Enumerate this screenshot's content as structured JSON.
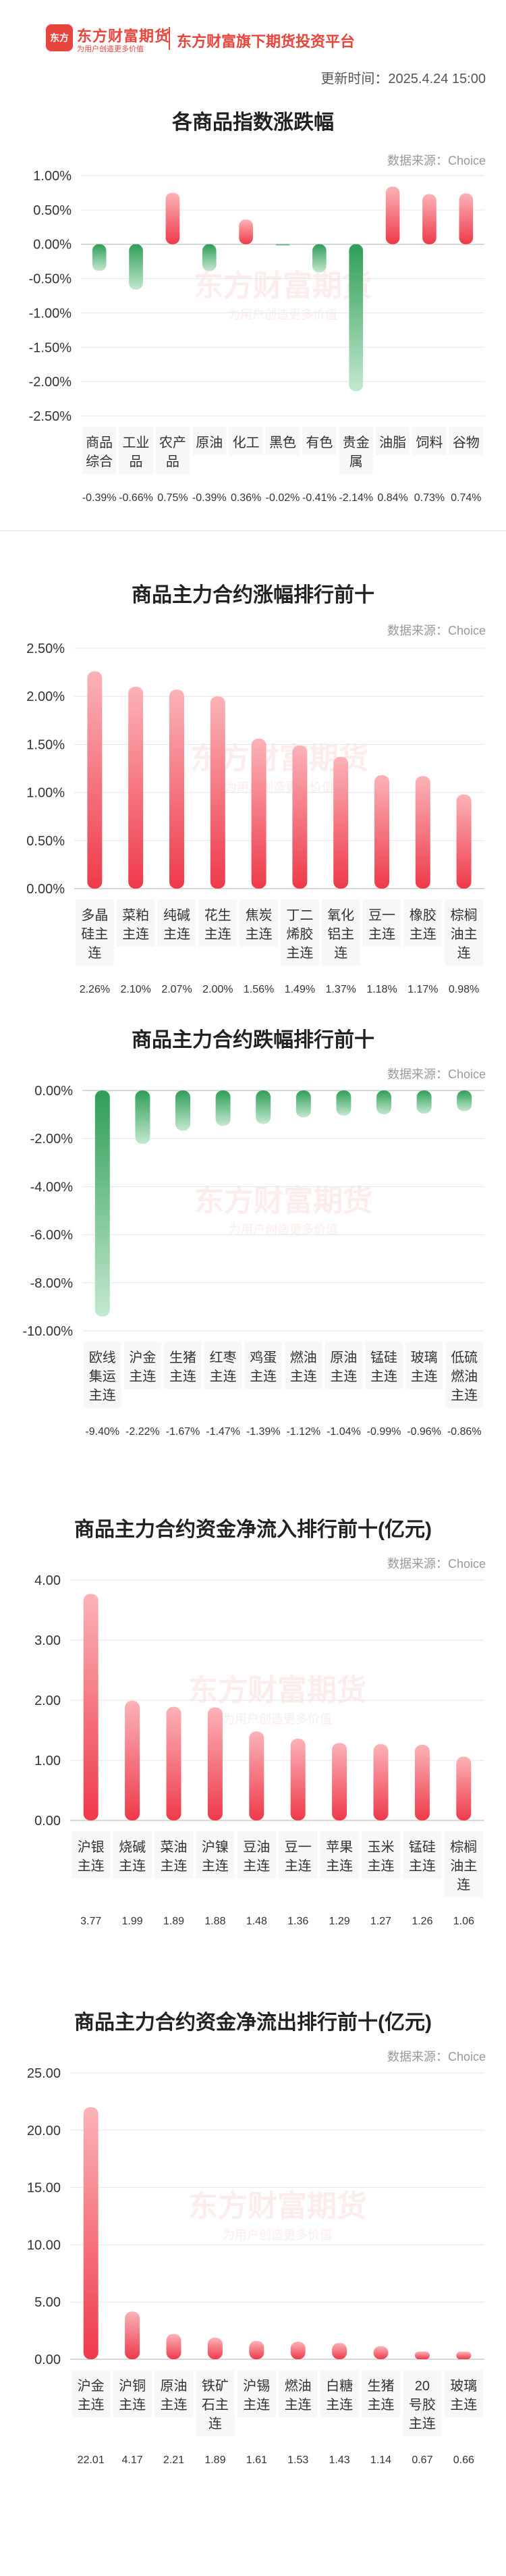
{
  "header": {
    "logo_text": "东方",
    "brand_name": "东方财富期货",
    "slogan": "为用户创造更多价值",
    "platform": "东方财富旗下期货投资平台",
    "update_time": "更新时间：2025.4.24 15:00"
  },
  "watermark": {
    "main": "东方财富期货",
    "sub": "为用户创造更多价值"
  },
  "colors": {
    "up_top": "#fbb3b8",
    "up_bottom": "#ee3a4a",
    "down_top": "#2f9e57",
    "down_bottom": "#c3e8cf",
    "accent": "#e8453c"
  },
  "sections": [
    {
      "title": "各商品指数涨跌幅",
      "source": "数据来源：Choice"
    },
    {
      "title": "商品主力合约涨幅排行前十",
      "source": "数据来源：Choice"
    },
    {
      "title": "商品主力合约跌幅排行前十",
      "source": "数据来源：Choice"
    },
    {
      "title": "商品主力合约资金净流入排行前十(亿元)",
      "source": "数据来源：Choice"
    },
    {
      "title": "商品主力合约资金净流出排行前十(亿元)",
      "source": "数据来源：Choice"
    }
  ],
  "chart_data": [
    {
      "type": "bar",
      "title": "各商品指数涨跌幅",
      "categories": [
        "商品综合",
        "工业品",
        "农产品",
        "原油",
        "化工",
        "黑色",
        "有色",
        "贵金属",
        "油脂",
        "饲料",
        "谷物"
      ],
      "values": [
        -0.39,
        -0.66,
        0.75,
        -0.39,
        0.36,
        -0.02,
        -0.41,
        -2.14,
        0.84,
        0.73,
        0.74
      ],
      "value_labels": [
        "-0.39%",
        "-0.66%",
        "0.75%",
        "-0.39%",
        "0.36%",
        "-0.02%",
        "-0.41%",
        "-2.14%",
        "0.84%",
        "0.73%",
        "0.74%"
      ],
      "yticks": [
        "1.00%",
        "0.50%",
        "0.00%",
        "-0.50%",
        "-1.00%",
        "-1.50%",
        "-2.00%",
        "-2.50%"
      ],
      "ylim": [
        -2.5,
        1.0
      ]
    },
    {
      "type": "bar",
      "title": "商品主力合约涨幅排行前十",
      "categories": [
        "多晶硅主连",
        "菜粕主连",
        "纯碱主连",
        "花生主连",
        "焦炭主连",
        "丁二烯胶主连",
        "氧化铝主连",
        "豆一主连",
        "橡胶主连",
        "棕榈油主连"
      ],
      "values": [
        2.26,
        2.1,
        2.07,
        2.0,
        1.56,
        1.49,
        1.37,
        1.18,
        1.17,
        0.98
      ],
      "value_labels": [
        "2.26%",
        "2.10%",
        "2.07%",
        "2.00%",
        "1.56%",
        "1.49%",
        "1.37%",
        "1.18%",
        "1.17%",
        "0.98%"
      ],
      "yticks": [
        "2.50%",
        "2.00%",
        "1.50%",
        "1.00%",
        "0.50%",
        "0.00%"
      ],
      "ylim": [
        0,
        2.5
      ]
    },
    {
      "type": "bar",
      "title": "商品主力合约跌幅排行前十",
      "categories": [
        "欧线集运主连",
        "沪金主连",
        "生猪主连",
        "红枣主连",
        "鸡蛋主连",
        "燃油主连",
        "原油主连",
        "锰硅主连",
        "玻璃主连",
        "低硫燃油主连"
      ],
      "values": [
        -9.4,
        -2.22,
        -1.67,
        -1.47,
        -1.39,
        -1.12,
        -1.04,
        -0.99,
        -0.96,
        -0.86
      ],
      "value_labels": [
        "-9.40%",
        "-2.22%",
        "-1.67%",
        "-1.47%",
        "-1.39%",
        "-1.12%",
        "-1.04%",
        "-0.99%",
        "-0.96%",
        "-0.86%"
      ],
      "yticks": [
        "0.00%",
        "-2.00%",
        "-4.00%",
        "-6.00%",
        "-8.00%",
        "-10.00%"
      ],
      "ylim": [
        -10,
        0
      ]
    },
    {
      "type": "bar",
      "title": "商品主力合约资金净流入排行前十(亿元)",
      "categories": [
        "沪银主连",
        "烧碱主连",
        "菜油主连",
        "沪镍主连",
        "豆油主连",
        "豆一主连",
        "苹果主连",
        "玉米主连",
        "锰硅主连",
        "棕榈油主连"
      ],
      "values": [
        3.77,
        1.99,
        1.89,
        1.88,
        1.48,
        1.36,
        1.29,
        1.27,
        1.26,
        1.06
      ],
      "value_labels": [
        "3.77",
        "1.99",
        "1.89",
        "1.88",
        "1.48",
        "1.36",
        "1.29",
        "1.27",
        "1.26",
        "1.06"
      ],
      "yticks": [
        "4.00",
        "3.00",
        "2.00",
        "1.00",
        "0.00"
      ],
      "ylim": [
        0,
        4
      ]
    },
    {
      "type": "bar",
      "title": "商品主力合约资金净流出排行前十(亿元)",
      "categories": [
        "沪金主连",
        "沪铜主连",
        "原油主连",
        "铁矿石主连",
        "沪锡主连",
        "燃油主连",
        "白糖主连",
        "生猪主连",
        "20号胶主连",
        "玻璃主连"
      ],
      "values": [
        22.01,
        4.17,
        2.21,
        1.89,
        1.61,
        1.53,
        1.43,
        1.14,
        0.67,
        0.66
      ],
      "value_labels": [
        "22.01",
        "4.17",
        "2.21",
        "1.89",
        "1.61",
        "1.53",
        "1.43",
        "1.14",
        "0.67",
        "0.66"
      ],
      "yticks": [
        "25.00",
        "20.00",
        "15.00",
        "10.00",
        "5.00",
        "0.00"
      ],
      "ylim": [
        0,
        25
      ]
    }
  ]
}
